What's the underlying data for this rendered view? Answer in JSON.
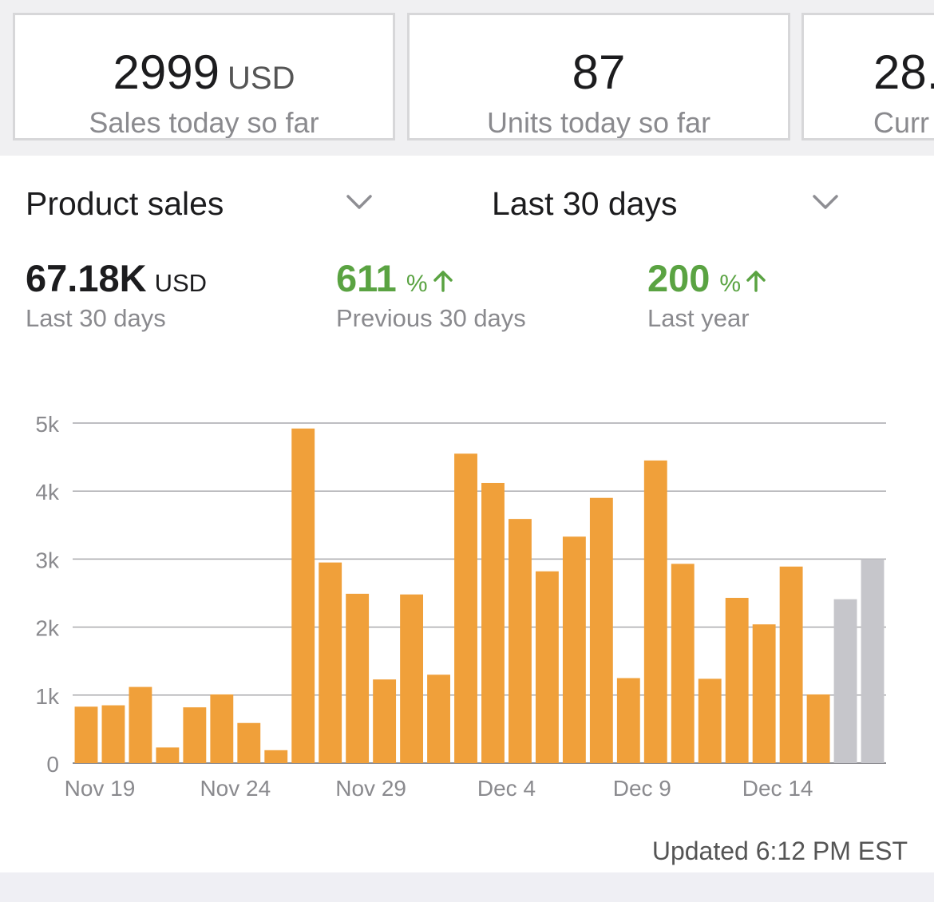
{
  "cards": [
    {
      "value": "2999",
      "unit": "USD",
      "label": "Sales today so far"
    },
    {
      "value": "87",
      "unit": "",
      "label": "Units today so far"
    },
    {
      "value": "28.",
      "unit": "",
      "label": "Curr"
    }
  ],
  "selectors": {
    "metric": "Product sales",
    "range": "Last 30 days"
  },
  "summary": {
    "total": {
      "value": "67.18K",
      "unit": "USD",
      "label": "Last 30 days"
    },
    "previous": {
      "value": "611",
      "unit": "%",
      "label": "Previous 30 days"
    },
    "last_year": {
      "value": "200",
      "unit": "%",
      "label": "Last year"
    }
  },
  "colors": {
    "bar": "#f0a03a",
    "projected": "#c6c6cb",
    "grid": "#a9a9ad",
    "positive": "#5aa342"
  },
  "chart_data": {
    "type": "bar",
    "x_labels": [
      "Nov 19",
      "Nov 24",
      "Nov 29",
      "Dec 4",
      "Dec 9",
      "Dec 14"
    ],
    "y_ticks": [
      "0",
      "1k",
      "2k",
      "3k",
      "4k",
      "5k"
    ],
    "ylim": [
      0,
      5000
    ],
    "grid": true,
    "values": [
      830,
      850,
      1120,
      230,
      820,
      1010,
      590,
      190,
      4920,
      2950,
      2490,
      1230,
      2480,
      1300,
      4550,
      4120,
      3590,
      2820,
      3330,
      3900,
      1250,
      4450,
      2930,
      1240,
      2430,
      2040,
      2890,
      1010,
      2410,
      3000
    ],
    "projected_from_index": 28
  },
  "footer": {
    "updated": "Updated 6:12 PM EST"
  }
}
